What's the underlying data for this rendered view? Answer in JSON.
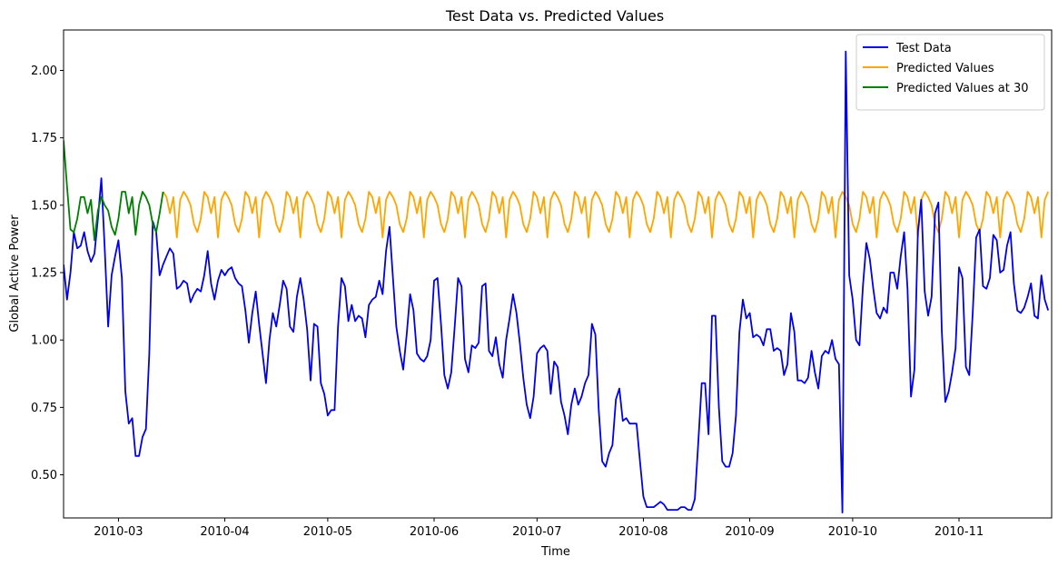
{
  "chart_data": {
    "type": "line",
    "title": "Test Data vs. Predicted Values",
    "xlabel": "Time",
    "ylabel": "Global Active Power",
    "xlim": [
      "2010-02-13",
      "2010-11-28"
    ],
    "ylim": [
      0.34,
      2.15
    ],
    "yticks": [
      0.5,
      0.75,
      1.0,
      1.25,
      1.5,
      1.75,
      2.0
    ],
    "ytick_labels": [
      "0.50",
      "0.75",
      "1.00",
      "1.25",
      "1.50",
      "1.75",
      "2.00"
    ],
    "xticks": [
      "2010-03-01",
      "2010-04-01",
      "2010-05-01",
      "2010-06-01",
      "2010-07-01",
      "2010-08-01",
      "2010-09-01",
      "2010-10-01",
      "2010-11-01"
    ],
    "xtick_labels": [
      "2010-03",
      "2010-04",
      "2010-05",
      "2010-06",
      "2010-07",
      "2010-08",
      "2010-09",
      "2010-10",
      "2010-11"
    ],
    "grid": false,
    "legend_position": "top-right",
    "series": [
      {
        "name": "Test Data",
        "color": "#0000ee",
        "x": [
          "2010-02-13",
          "2010-02-14",
          "2010-02-15",
          "2010-02-16",
          "2010-02-17",
          "2010-02-18",
          "2010-02-19",
          "2010-02-20",
          "2010-02-21",
          "2010-02-22",
          "2010-02-23",
          "2010-02-24",
          "2010-02-25",
          "2010-02-26",
          "2010-02-27",
          "2010-02-28",
          "2010-03-01",
          "2010-03-02",
          "2010-03-03",
          "2010-03-04",
          "2010-03-05",
          "2010-03-06",
          "2010-03-07",
          "2010-03-08",
          "2010-03-09",
          "2010-03-10",
          "2010-03-11",
          "2010-03-12",
          "2010-03-13",
          "2010-03-14",
          "2010-03-15",
          "2010-03-16",
          "2010-03-17",
          "2010-03-18",
          "2010-03-19",
          "2010-03-20",
          "2010-03-21",
          "2010-03-22",
          "2010-03-23",
          "2010-03-24",
          "2010-03-25",
          "2010-03-26",
          "2010-03-27",
          "2010-03-28",
          "2010-03-29",
          "2010-03-30",
          "2010-03-31",
          "2010-04-01",
          "2010-04-02",
          "2010-04-03",
          "2010-04-04",
          "2010-04-05",
          "2010-04-06",
          "2010-04-07",
          "2010-04-08",
          "2010-04-09",
          "2010-04-10",
          "2010-04-11",
          "2010-04-12",
          "2010-04-13",
          "2010-04-14",
          "2010-04-15",
          "2010-04-16",
          "2010-04-17",
          "2010-04-18",
          "2010-04-19",
          "2010-04-20",
          "2010-04-21",
          "2010-04-22",
          "2010-04-23",
          "2010-04-24",
          "2010-04-25",
          "2010-04-26",
          "2010-04-27",
          "2010-04-28",
          "2010-04-29",
          "2010-04-30",
          "2010-05-01",
          "2010-05-02",
          "2010-05-03",
          "2010-05-04",
          "2010-05-05",
          "2010-05-06",
          "2010-05-07",
          "2010-05-08",
          "2010-05-09",
          "2010-05-10",
          "2010-05-11",
          "2010-05-12",
          "2010-05-13",
          "2010-05-14",
          "2010-05-15",
          "2010-05-16",
          "2010-05-17",
          "2010-05-18",
          "2010-05-19",
          "2010-05-20",
          "2010-05-21",
          "2010-05-22",
          "2010-05-23",
          "2010-05-24",
          "2010-05-25",
          "2010-05-26",
          "2010-05-27",
          "2010-05-28",
          "2010-05-29",
          "2010-05-30",
          "2010-05-31",
          "2010-06-01",
          "2010-06-02",
          "2010-06-03",
          "2010-06-04",
          "2010-06-05",
          "2010-06-06",
          "2010-06-07",
          "2010-06-08",
          "2010-06-09",
          "2010-06-10",
          "2010-06-11",
          "2010-06-12",
          "2010-06-13",
          "2010-06-14",
          "2010-06-15",
          "2010-06-16",
          "2010-06-17",
          "2010-06-18",
          "2010-06-19",
          "2010-06-20",
          "2010-06-21",
          "2010-06-22",
          "2010-06-23",
          "2010-06-24",
          "2010-06-25",
          "2010-06-26",
          "2010-06-27",
          "2010-06-28",
          "2010-06-29",
          "2010-06-30",
          "2010-07-01",
          "2010-07-02",
          "2010-07-03",
          "2010-07-04",
          "2010-07-05",
          "2010-07-06",
          "2010-07-07",
          "2010-07-08",
          "2010-07-09",
          "2010-07-10",
          "2010-07-11",
          "2010-07-12",
          "2010-07-13",
          "2010-07-14",
          "2010-07-15",
          "2010-07-16",
          "2010-07-17",
          "2010-07-18",
          "2010-07-19",
          "2010-07-20",
          "2010-07-21",
          "2010-07-22",
          "2010-07-23",
          "2010-07-24",
          "2010-07-25",
          "2010-07-26",
          "2010-07-27",
          "2010-07-28",
          "2010-07-29",
          "2010-07-30",
          "2010-07-31",
          "2010-08-01",
          "2010-08-02",
          "2010-08-03",
          "2010-08-04",
          "2010-08-05",
          "2010-08-06",
          "2010-08-07",
          "2010-08-08",
          "2010-08-09",
          "2010-08-10",
          "2010-08-11",
          "2010-08-12",
          "2010-08-13",
          "2010-08-14",
          "2010-08-15",
          "2010-08-16",
          "2010-08-17",
          "2010-08-18",
          "2010-08-19",
          "2010-08-20",
          "2010-08-21",
          "2010-08-22",
          "2010-08-23",
          "2010-08-24",
          "2010-08-25",
          "2010-08-26",
          "2010-08-27",
          "2010-08-28",
          "2010-08-29",
          "2010-08-30",
          "2010-08-31",
          "2010-09-01",
          "2010-09-02",
          "2010-09-03",
          "2010-09-04",
          "2010-09-05",
          "2010-09-06",
          "2010-09-07",
          "2010-09-08",
          "2010-09-09",
          "2010-09-10",
          "2010-09-11",
          "2010-09-12",
          "2010-09-13",
          "2010-09-14",
          "2010-09-15",
          "2010-09-16",
          "2010-09-17",
          "2010-09-18",
          "2010-09-19",
          "2010-09-20",
          "2010-09-21",
          "2010-09-22",
          "2010-09-23",
          "2010-09-24",
          "2010-09-25",
          "2010-09-26",
          "2010-09-27",
          "2010-09-28",
          "2010-09-29",
          "2010-09-30",
          "2010-10-01",
          "2010-10-02",
          "2010-10-03",
          "2010-10-04",
          "2010-10-05",
          "2010-10-06",
          "2010-10-07",
          "2010-10-08",
          "2010-10-09",
          "2010-10-10",
          "2010-10-11",
          "2010-10-12",
          "2010-10-13",
          "2010-10-14",
          "2010-10-15",
          "2010-10-16",
          "2010-10-17",
          "2010-10-18",
          "2010-10-19",
          "2010-10-20",
          "2010-10-21",
          "2010-10-22",
          "2010-10-23",
          "2010-10-24",
          "2010-10-25",
          "2010-10-26",
          "2010-10-27",
          "2010-10-28",
          "2010-10-29",
          "2010-10-30",
          "2010-10-31",
          "2010-11-01",
          "2010-11-02",
          "2010-11-03",
          "2010-11-04",
          "2010-11-05",
          "2010-11-06",
          "2010-11-07",
          "2010-11-08",
          "2010-11-09",
          "2010-11-10",
          "2010-11-11",
          "2010-11-12",
          "2010-11-13",
          "2010-11-14",
          "2010-11-15",
          "2010-11-16",
          "2010-11-17",
          "2010-11-18",
          "2010-11-19",
          "2010-11-20",
          "2010-11-21",
          "2010-11-22",
          "2010-11-23",
          "2010-11-24",
          "2010-11-25",
          "2010-11-26",
          "2010-11-27"
        ],
        "y": [
          1.28,
          1.15,
          1.25,
          1.4,
          1.34,
          1.35,
          1.4,
          1.33,
          1.29,
          1.32,
          1.45,
          1.6,
          1.34,
          1.05,
          1.24,
          1.31,
          1.37,
          1.23,
          0.81,
          0.69,
          0.71,
          0.57,
          0.57,
          0.64,
          0.67,
          0.95,
          1.44,
          1.4,
          1.24,
          1.28,
          1.31,
          1.34,
          1.32,
          1.19,
          1.2,
          1.22,
          1.21,
          1.14,
          1.17,
          1.19,
          1.18,
          1.24,
          1.33,
          1.21,
          1.15,
          1.22,
          1.26,
          1.24,
          1.26,
          1.27,
          1.23,
          1.21,
          1.2,
          1.11,
          0.99,
          1.1,
          1.18,
          1.06,
          0.95,
          0.84,
          1.0,
          1.1,
          1.05,
          1.13,
          1.22,
          1.19,
          1.05,
          1.03,
          1.16,
          1.23,
          1.15,
          1.04,
          0.85,
          1.06,
          1.05,
          0.84,
          0.8,
          0.72,
          0.74,
          0.74,
          1.05,
          1.23,
          1.2,
          1.07,
          1.13,
          1.07,
          1.09,
          1.08,
          1.01,
          1.13,
          1.15,
          1.16,
          1.22,
          1.17,
          1.33,
          1.42,
          1.23,
          1.05,
          0.96,
          0.89,
          1.02,
          1.17,
          1.11,
          0.95,
          0.93,
          0.92,
          0.94,
          1.0,
          1.22,
          1.23,
          1.06,
          0.87,
          0.82,
          0.88,
          1.05,
          1.23,
          1.2,
          0.93,
          0.88,
          0.98,
          0.97,
          0.99,
          1.2,
          1.21,
          0.96,
          0.94,
          1.01,
          0.91,
          0.86,
          1.0,
          1.08,
          1.17,
          1.1,
          0.99,
          0.86,
          0.76,
          0.71,
          0.79,
          0.95,
          0.97,
          0.98,
          0.96,
          0.8,
          0.92,
          0.9,
          0.77,
          0.72,
          0.65,
          0.76,
          0.82,
          0.76,
          0.79,
          0.84,
          0.87,
          1.06,
          1.02,
          0.74,
          0.55,
          0.53,
          0.58,
          0.61,
          0.78,
          0.82,
          0.7,
          0.71,
          0.69,
          0.69,
          0.69,
          0.55,
          0.42,
          0.38,
          0.38,
          0.38,
          0.39,
          0.4,
          0.39,
          0.37,
          0.37,
          0.37,
          0.37,
          0.38,
          0.38,
          0.37,
          0.37,
          0.41,
          0.62,
          0.84,
          0.84,
          0.65,
          1.09,
          1.09,
          0.75,
          0.55,
          0.53,
          0.53,
          0.58,
          0.72,
          1.03,
          1.15,
          1.08,
          1.1,
          1.01,
          1.02,
          1.01,
          0.98,
          1.04,
          1.04,
          0.96,
          0.97,
          0.96,
          0.87,
          0.91,
          1.1,
          1.03,
          0.85,
          0.85,
          0.84,
          0.86,
          0.96,
          0.88,
          0.82,
          0.94,
          0.96,
          0.95,
          1.0,
          0.93,
          0.91,
          0.36,
          2.07,
          1.24,
          1.15,
          1.0,
          0.98,
          1.2,
          1.36,
          1.3,
          1.19,
          1.1,
          1.08,
          1.12,
          1.1,
          1.25,
          1.25,
          1.19,
          1.31,
          1.4,
          1.19,
          0.79,
          0.89,
          1.4,
          1.52,
          1.18,
          1.09,
          1.16,
          1.47,
          1.51,
          1.03,
          0.77,
          0.81,
          0.88,
          0.97,
          1.27,
          1.23,
          0.9,
          0.87,
          1.1,
          1.38,
          1.41,
          1.2,
          1.19,
          1.23,
          1.39,
          1.37,
          1.25,
          1.26,
          1.35,
          1.4,
          1.21,
          1.11,
          1.1,
          1.12,
          1.16,
          1.21,
          1.09,
          1.08,
          1.24,
          1.15,
          1.11
        ]
      },
      {
        "name": "Predicted Values",
        "color": "#ffa500",
        "x_start": "2010-03-14",
        "x_end": "2010-11-27",
        "pattern": [
          1.55,
          1.53,
          1.47,
          1.53,
          1.38,
          1.52,
          1.55,
          1.53,
          1.5,
          1.43,
          1.4,
          1.45
        ],
        "note": ""
      },
      {
        "name": "Predicted Values at 30",
        "color": "#008000",
        "x": [
          "2010-02-13",
          "2010-02-14",
          "2010-02-15",
          "2010-02-16",
          "2010-02-17",
          "2010-02-18",
          "2010-02-19",
          "2010-02-20",
          "2010-02-21",
          "2010-02-22",
          "2010-02-23",
          "2010-02-24",
          "2010-02-25",
          "2010-02-26",
          "2010-02-27",
          "2010-02-28",
          "2010-03-01",
          "2010-03-02",
          "2010-03-03",
          "2010-03-04",
          "2010-03-05",
          "2010-03-06",
          "2010-03-07",
          "2010-03-08",
          "2010-03-09",
          "2010-03-10",
          "2010-03-11",
          "2010-03-12",
          "2010-03-13",
          "2010-03-14"
        ],
        "y": [
          1.74,
          1.57,
          1.41,
          1.4,
          1.45,
          1.53,
          1.53,
          1.47,
          1.52,
          1.37,
          1.48,
          1.53,
          1.5,
          1.48,
          1.42,
          1.39,
          1.45,
          1.55,
          1.55,
          1.47,
          1.53,
          1.39,
          1.5,
          1.55,
          1.53,
          1.5,
          1.43,
          1.4,
          1.47,
          1.55
        ]
      }
    ]
  }
}
